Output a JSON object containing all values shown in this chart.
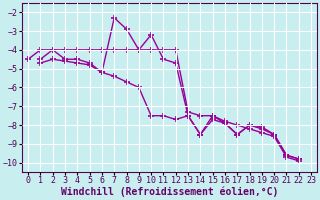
{
  "background_color": "#c8eef0",
  "grid_color": "#ffffff",
  "line_color": "#990099",
  "marker": "+",
  "markersize": 4,
  "linewidth": 1.0,
  "markeredgewidth": 1.2,
  "series": [
    [
      null,
      -4.7,
      -4.5,
      -4.6,
      -4.7,
      -4.8,
      -5.2,
      -5.4,
      -5.7,
      -6.0,
      -7.5,
      -7.5,
      -7.7,
      -7.5,
      -8.5,
      -7.7,
      -7.9,
      -8.5,
      -8.0,
      -8.1,
      -8.5,
      -9.6,
      -9.8
    ],
    [
      null,
      -4.5,
      -4.0,
      -4.5,
      -4.5,
      -4.7,
      -5.2,
      -2.3,
      -2.9,
      -4.0,
      -3.2,
      -4.5,
      -4.7,
      -7.5,
      -8.5,
      -7.5,
      -7.9,
      -8.5,
      -8.0,
      -8.2,
      -8.5,
      -9.6,
      -9.8
    ],
    [
      -4.5,
      -4.0,
      -4.0,
      -4.0,
      -4.0,
      -4.0,
      -4.0,
      -4.0,
      -4.0,
      -4.0,
      -4.0,
      -4.0,
      -4.0,
      -7.3,
      -7.5,
      -7.5,
      -7.8,
      -8.0,
      -8.2,
      -8.4,
      -8.6,
      -9.7,
      -9.9
    ]
  ],
  "xlabel": "Windchill (Refroidissement éolien,°C)",
  "xlabel_fontsize": 7.0,
  "xticks": [
    0,
    1,
    2,
    3,
    4,
    5,
    6,
    7,
    8,
    9,
    10,
    11,
    12,
    13,
    14,
    15,
    16,
    17,
    18,
    19,
    20,
    21,
    22,
    23
  ],
  "yticks": [
    -10,
    -9,
    -8,
    -7,
    -6,
    -5,
    -4,
    -3,
    -2
  ],
  "xlim": [
    -0.5,
    23.5
  ],
  "ylim": [
    -10.5,
    -1.5
  ],
  "tick_fontsize": 6.0,
  "figsize": [
    3.2,
    2.0
  ],
  "dpi": 100
}
